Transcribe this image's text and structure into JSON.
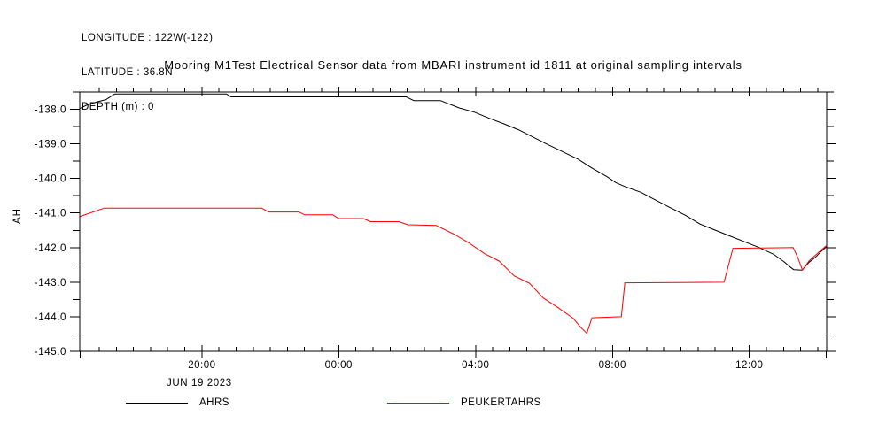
{
  "header": {
    "longitude": "LONGITUDE : 122W(-122)",
    "latitude": "LATITUDE : 36.8N",
    "depth": "DEPTH (m) : 0"
  },
  "chart_data": {
    "type": "line",
    "title": "Mooring M1Test Electrical Sensor data from MBARI instrument id 1811 at original sampling intervals",
    "ylabel": "AH",
    "date_label": "JUN 19 2023",
    "x_axis": {
      "unit": "hours since 2023-06-19 00:00",
      "min": 16.43,
      "max": 38.26,
      "major_ticks": [
        {
          "hour": 20,
          "label": "20:00"
        },
        {
          "hour": 24,
          "label": "00:00"
        },
        {
          "hour": 28,
          "label": "04:00"
        },
        {
          "hour": 32,
          "label": "08:00"
        },
        {
          "hour": 36,
          "label": "12:00"
        }
      ],
      "minor_interval_hours": 0.5
    },
    "y_axis": {
      "min": -145.0,
      "max": -137.5,
      "major_ticks": [
        {
          "value": -138,
          "label": "-138.0"
        },
        {
          "value": -139,
          "label": "-139.0"
        },
        {
          "value": -140,
          "label": "-140.0"
        },
        {
          "value": -141,
          "label": "-141.0"
        },
        {
          "value": -142,
          "label": "-142.0"
        },
        {
          "value": -143,
          "label": "-143.0"
        },
        {
          "value": -144,
          "label": "-144.0"
        },
        {
          "value": -145,
          "label": "-145.0"
        }
      ],
      "minor_interval": 0.5
    },
    "grid": false,
    "legend": [
      {
        "label": "AHRS",
        "color": "#000000"
      },
      {
        "label": "PEUKERTAHRS",
        "color": "#ff0000"
      }
    ],
    "series": [
      {
        "name": "AHRS",
        "color": "#000000",
        "points": [
          [
            16.44,
            -137.97
          ],
          [
            16.65,
            -137.87
          ],
          [
            16.96,
            -137.78
          ],
          [
            17.2,
            -137.72
          ],
          [
            17.45,
            -137.56
          ],
          [
            20.72,
            -137.56
          ],
          [
            20.85,
            -137.64
          ],
          [
            25.97,
            -137.64
          ],
          [
            26.2,
            -137.75
          ],
          [
            26.98,
            -137.75
          ],
          [
            27.52,
            -137.96
          ],
          [
            27.96,
            -138.08
          ],
          [
            28.4,
            -138.26
          ],
          [
            28.82,
            -138.42
          ],
          [
            29.25,
            -138.59
          ],
          [
            29.69,
            -138.81
          ],
          [
            30.11,
            -139.02
          ],
          [
            30.55,
            -139.23
          ],
          [
            30.99,
            -139.44
          ],
          [
            31.4,
            -139.7
          ],
          [
            31.84,
            -139.95
          ],
          [
            32.1,
            -140.12
          ],
          [
            32.4,
            -140.25
          ],
          [
            32.83,
            -140.4
          ],
          [
            33.27,
            -140.63
          ],
          [
            33.7,
            -140.85
          ],
          [
            34.12,
            -141.06
          ],
          [
            34.56,
            -141.32
          ],
          [
            34.99,
            -141.49
          ],
          [
            35.42,
            -141.66
          ],
          [
            35.86,
            -141.83
          ],
          [
            36.29,
            -142.0
          ],
          [
            36.72,
            -142.2
          ],
          [
            37.0,
            -142.4
          ],
          [
            37.18,
            -142.55
          ],
          [
            37.3,
            -142.64
          ],
          [
            37.54,
            -142.65
          ],
          [
            37.75,
            -142.42
          ],
          [
            37.93,
            -142.28
          ],
          [
            38.11,
            -142.1
          ],
          [
            38.25,
            -141.98
          ]
        ]
      },
      {
        "name": "PEUKERTAHRS",
        "color": "#ff0000",
        "points": [
          [
            16.44,
            -141.1
          ],
          [
            17.14,
            -140.86
          ],
          [
            21.75,
            -140.86
          ],
          [
            21.95,
            -140.97
          ],
          [
            22.83,
            -140.97
          ],
          [
            23.0,
            -141.05
          ],
          [
            23.82,
            -141.05
          ],
          [
            24.0,
            -141.16
          ],
          [
            24.72,
            -141.16
          ],
          [
            24.93,
            -141.25
          ],
          [
            25.76,
            -141.25
          ],
          [
            26.02,
            -141.34
          ],
          [
            26.85,
            -141.36
          ],
          [
            27.39,
            -141.62
          ],
          [
            27.83,
            -141.88
          ],
          [
            28.27,
            -142.18
          ],
          [
            28.69,
            -142.39
          ],
          [
            29.13,
            -142.82
          ],
          [
            29.57,
            -143.03
          ],
          [
            29.98,
            -143.46
          ],
          [
            30.42,
            -143.74
          ],
          [
            30.86,
            -144.05
          ],
          [
            31.07,
            -144.3
          ],
          [
            31.25,
            -144.48
          ],
          [
            31.4,
            -144.03
          ],
          [
            32.26,
            -144.0
          ],
          [
            32.36,
            -143.02
          ],
          [
            35.26,
            -143.0
          ],
          [
            35.52,
            -142.02
          ],
          [
            37.28,
            -142.0
          ],
          [
            37.42,
            -142.3
          ],
          [
            37.55,
            -142.65
          ],
          [
            37.75,
            -142.38
          ],
          [
            37.93,
            -142.22
          ],
          [
            38.11,
            -142.06
          ],
          [
            38.25,
            -141.95
          ]
        ]
      }
    ]
  }
}
